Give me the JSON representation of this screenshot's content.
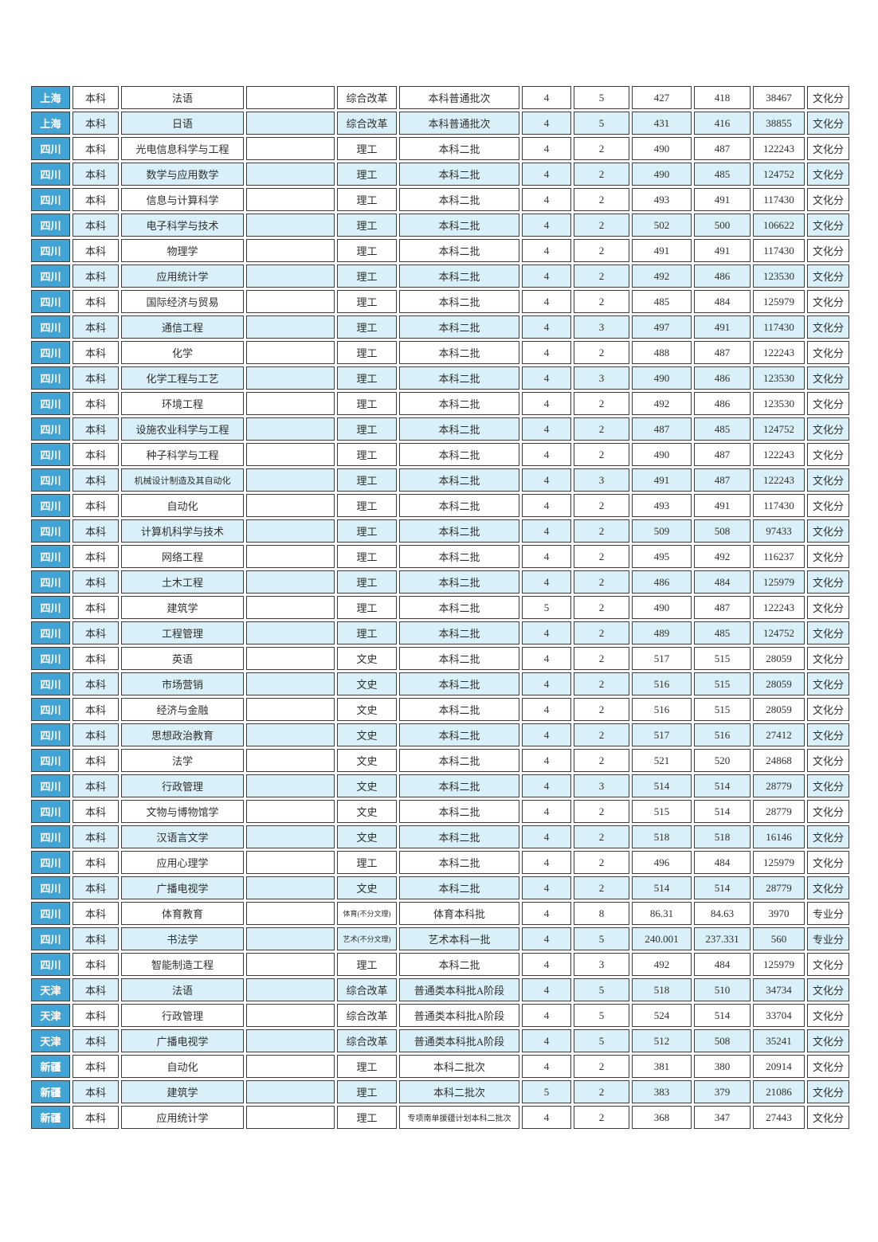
{
  "colors": {
    "province_cell_bg": "#42a3d5",
    "province_cell_text": "#ffffff",
    "row_alt_bg": "#d9f0f8",
    "row_bg": "#ffffff",
    "border": "#3b3b3b",
    "text": "#2f2f2f"
  },
  "table": {
    "columns": [
      "region",
      "level",
      "major",
      "note",
      "subject-category",
      "batch",
      "plan-count",
      "admit-count",
      "high-score",
      "low-score",
      "low-rank",
      "score-type"
    ],
    "rows": [
      [
        "上海",
        "本科",
        "法语",
        "",
        "综合改革",
        "本科普通批次",
        "4",
        "5",
        "427",
        "418",
        "38467",
        "文化分"
      ],
      [
        "上海",
        "本科",
        "日语",
        "",
        "综合改革",
        "本科普通批次",
        "4",
        "5",
        "431",
        "416",
        "38855",
        "文化分"
      ],
      [
        "四川",
        "本科",
        "光电信息科学与工程",
        "",
        "理工",
        "本科二批",
        "4",
        "2",
        "490",
        "487",
        "122243",
        "文化分"
      ],
      [
        "四川",
        "本科",
        "数学与应用数学",
        "",
        "理工",
        "本科二批",
        "4",
        "2",
        "490",
        "485",
        "124752",
        "文化分"
      ],
      [
        "四川",
        "本科",
        "信息与计算科学",
        "",
        "理工",
        "本科二批",
        "4",
        "2",
        "493",
        "491",
        "117430",
        "文化分"
      ],
      [
        "四川",
        "本科",
        "电子科学与技术",
        "",
        "理工",
        "本科二批",
        "4",
        "2",
        "502",
        "500",
        "106622",
        "文化分"
      ],
      [
        "四川",
        "本科",
        "物理学",
        "",
        "理工",
        "本科二批",
        "4",
        "2",
        "491",
        "491",
        "117430",
        "文化分"
      ],
      [
        "四川",
        "本科",
        "应用统计学",
        "",
        "理工",
        "本科二批",
        "4",
        "2",
        "492",
        "486",
        "123530",
        "文化分"
      ],
      [
        "四川",
        "本科",
        "国际经济与贸易",
        "",
        "理工",
        "本科二批",
        "4",
        "2",
        "485",
        "484",
        "125979",
        "文化分"
      ],
      [
        "四川",
        "本科",
        "通信工程",
        "",
        "理工",
        "本科二批",
        "4",
        "3",
        "497",
        "491",
        "117430",
        "文化分"
      ],
      [
        "四川",
        "本科",
        "化学",
        "",
        "理工",
        "本科二批",
        "4",
        "2",
        "488",
        "487",
        "122243",
        "文化分"
      ],
      [
        "四川",
        "本科",
        "化学工程与工艺",
        "",
        "理工",
        "本科二批",
        "4",
        "3",
        "490",
        "486",
        "123530",
        "文化分"
      ],
      [
        "四川",
        "本科",
        "环境工程",
        "",
        "理工",
        "本科二批",
        "4",
        "2",
        "492",
        "486",
        "123530",
        "文化分"
      ],
      [
        "四川",
        "本科",
        "设施农业科学与工程",
        "",
        "理工",
        "本科二批",
        "4",
        "2",
        "487",
        "485",
        "124752",
        "文化分"
      ],
      [
        "四川",
        "本科",
        "种子科学与工程",
        "",
        "理工",
        "本科二批",
        "4",
        "2",
        "490",
        "487",
        "122243",
        "文化分"
      ],
      [
        "四川",
        "本科",
        "机械设计制造及其自动化",
        "",
        "理工",
        "本科二批",
        "4",
        "3",
        "491",
        "487",
        "122243",
        "文化分"
      ],
      [
        "四川",
        "本科",
        "自动化",
        "",
        "理工",
        "本科二批",
        "4",
        "2",
        "493",
        "491",
        "117430",
        "文化分"
      ],
      [
        "四川",
        "本科",
        "计算机科学与技术",
        "",
        "理工",
        "本科二批",
        "4",
        "2",
        "509",
        "508",
        "97433",
        "文化分"
      ],
      [
        "四川",
        "本科",
        "网络工程",
        "",
        "理工",
        "本科二批",
        "4",
        "2",
        "495",
        "492",
        "116237",
        "文化分"
      ],
      [
        "四川",
        "本科",
        "土木工程",
        "",
        "理工",
        "本科二批",
        "4",
        "2",
        "486",
        "484",
        "125979",
        "文化分"
      ],
      [
        "四川",
        "本科",
        "建筑学",
        "",
        "理工",
        "本科二批",
        "5",
        "2",
        "490",
        "487",
        "122243",
        "文化分"
      ],
      [
        "四川",
        "本科",
        "工程管理",
        "",
        "理工",
        "本科二批",
        "4",
        "2",
        "489",
        "485",
        "124752",
        "文化分"
      ],
      [
        "四川",
        "本科",
        "英语",
        "",
        "文史",
        "本科二批",
        "4",
        "2",
        "517",
        "515",
        "28059",
        "文化分"
      ],
      [
        "四川",
        "本科",
        "市场营销",
        "",
        "文史",
        "本科二批",
        "4",
        "2",
        "516",
        "515",
        "28059",
        "文化分"
      ],
      [
        "四川",
        "本科",
        "经济与金融",
        "",
        "文史",
        "本科二批",
        "4",
        "2",
        "516",
        "515",
        "28059",
        "文化分"
      ],
      [
        "四川",
        "本科",
        "思想政治教育",
        "",
        "文史",
        "本科二批",
        "4",
        "2",
        "517",
        "516",
        "27412",
        "文化分"
      ],
      [
        "四川",
        "本科",
        "法学",
        "",
        "文史",
        "本科二批",
        "4",
        "2",
        "521",
        "520",
        "24868",
        "文化分"
      ],
      [
        "四川",
        "本科",
        "行政管理",
        "",
        "文史",
        "本科二批",
        "4",
        "3",
        "514",
        "514",
        "28779",
        "文化分"
      ],
      [
        "四川",
        "本科",
        "文物与博物馆学",
        "",
        "文史",
        "本科二批",
        "4",
        "2",
        "515",
        "514",
        "28779",
        "文化分"
      ],
      [
        "四川",
        "本科",
        "汉语言文学",
        "",
        "文史",
        "本科二批",
        "4",
        "2",
        "518",
        "518",
        "16146",
        "文化分"
      ],
      [
        "四川",
        "本科",
        "应用心理学",
        "",
        "理工",
        "本科二批",
        "4",
        "2",
        "496",
        "484",
        "125979",
        "文化分"
      ],
      [
        "四川",
        "本科",
        "广播电视学",
        "",
        "文史",
        "本科二批",
        "4",
        "2",
        "514",
        "514",
        "28779",
        "文化分"
      ],
      [
        "四川",
        "本科",
        "体育教育",
        "",
        "体育(不分文理)",
        "体育本科批",
        "4",
        "8",
        "86.31",
        "84.63",
        "3970",
        "专业分"
      ],
      [
        "四川",
        "本科",
        "书法学",
        "",
        "艺术(不分文理)",
        "艺术本科一批",
        "4",
        "5",
        "240.001",
        "237.331",
        "560",
        "专业分"
      ],
      [
        "四川",
        "本科",
        "智能制造工程",
        "",
        "理工",
        "本科二批",
        "4",
        "3",
        "492",
        "484",
        "125979",
        "文化分"
      ],
      [
        "天津",
        "本科",
        "法语",
        "",
        "综合改革",
        "普通类本科批A阶段",
        "4",
        "5",
        "518",
        "510",
        "34734",
        "文化分"
      ],
      [
        "天津",
        "本科",
        "行政管理",
        "",
        "综合改革",
        "普通类本科批A阶段",
        "4",
        "5",
        "524",
        "514",
        "33704",
        "文化分"
      ],
      [
        "天津",
        "本科",
        "广播电视学",
        "",
        "综合改革",
        "普通类本科批A阶段",
        "4",
        "5",
        "512",
        "508",
        "35241",
        "文化分"
      ],
      [
        "新疆",
        "本科",
        "自动化",
        "",
        "理工",
        "本科二批次",
        "4",
        "2",
        "381",
        "380",
        "20914",
        "文化分"
      ],
      [
        "新疆",
        "本科",
        "建筑学",
        "",
        "理工",
        "本科二批次",
        "5",
        "2",
        "383",
        "379",
        "21086",
        "文化分"
      ],
      [
        "新疆",
        "本科",
        "应用统计学",
        "",
        "理工",
        "专项南单援疆计划本科二批次",
        "4",
        "2",
        "368",
        "347",
        "27443",
        "文化分"
      ]
    ]
  }
}
